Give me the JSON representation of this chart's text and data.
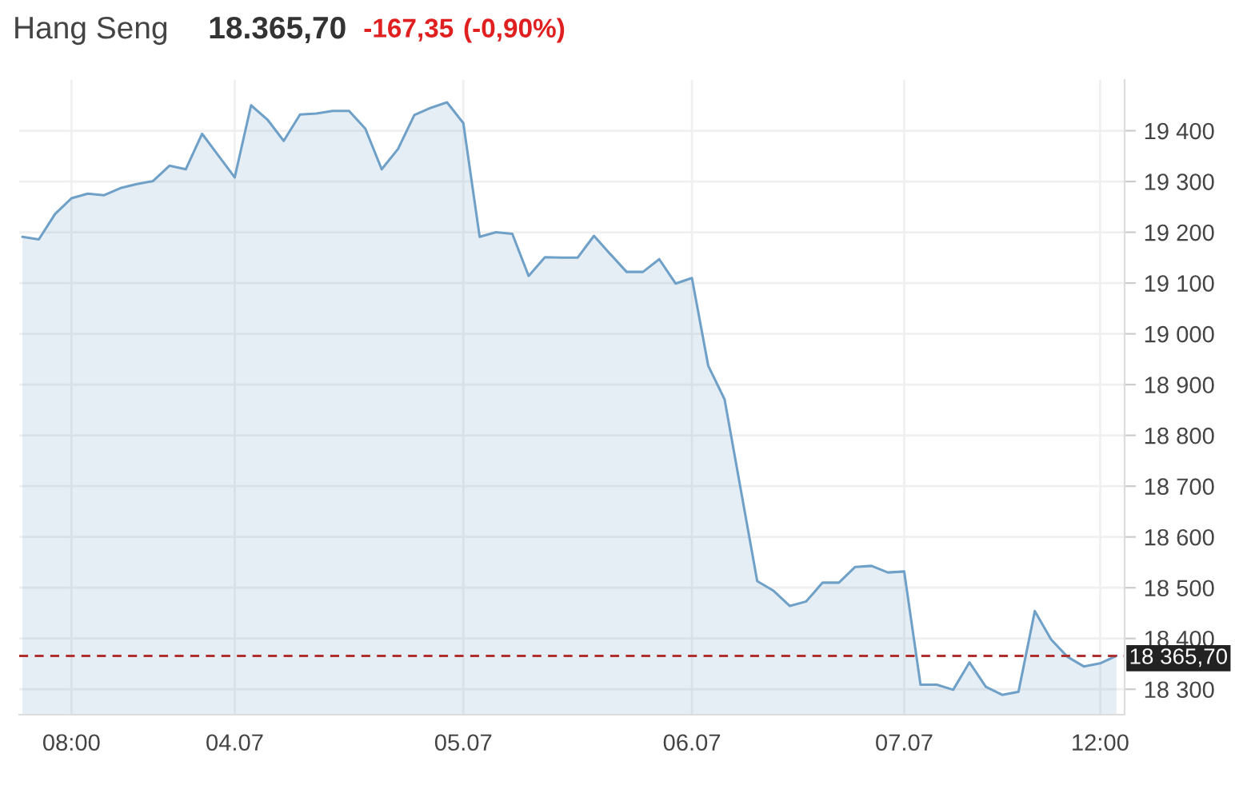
{
  "chart_data": {
    "type": "area",
    "title": "Hang Seng",
    "annotations": [
      "18.365,70",
      "-167,35",
      "(-0,90%)"
    ],
    "categories": [
      null,
      null,
      null,
      "08:00",
      null,
      null,
      null,
      null,
      null,
      null,
      null,
      null,
      null,
      "04.07",
      null,
      null,
      null,
      null,
      null,
      null,
      null,
      null,
      null,
      null,
      null,
      null,
      null,
      "05.07",
      null,
      null,
      null,
      null,
      null,
      null,
      null,
      null,
      null,
      null,
      null,
      null,
      null,
      "06.07",
      null,
      null,
      null,
      null,
      null,
      null,
      null,
      null,
      null,
      null,
      null,
      null,
      "07.07",
      null,
      null,
      null,
      null,
      null,
      null,
      null,
      null,
      null,
      null,
      null,
      "12:00",
      null
    ],
    "series": [
      {
        "color": "#6fa0c8",
        "values": [
          19191,
          19186,
          19236,
          19267,
          19276,
          19273,
          19287,
          19295,
          19301,
          19331,
          19324,
          19394,
          19351,
          19308,
          19450,
          19422,
          19380,
          19432,
          19434,
          19439,
          19439,
          19404,
          19324,
          19364,
          19431,
          19445,
          19456,
          19415,
          19191,
          19200,
          19197,
          19114,
          19151,
          19150,
          19150,
          19193,
          19157,
          19122,
          19122,
          19147,
          19099,
          19110,
          18937,
          18871,
          18692,
          18513,
          18494,
          18464,
          18473,
          18510,
          18510,
          18541,
          18543,
          18530,
          18532,
          18309,
          18309,
          18299,
          18353,
          18305,
          18289,
          18295,
          18454,
          18398,
          18364,
          18345,
          18351,
          18366
        ]
      }
    ],
    "ylim": [
      18250,
      19500
    ],
    "yticks": [
      {
        "value": 18300,
        "label": "18 300"
      },
      {
        "value": 18400,
        "label": "18 400"
      },
      {
        "value": 18500,
        "label": "18 500"
      },
      {
        "value": 18600,
        "label": "18 600"
      },
      {
        "value": 18700,
        "label": "18 700"
      },
      {
        "value": 18800,
        "label": "18 800"
      },
      {
        "value": 18900,
        "label": "18 900"
      },
      {
        "value": 19000,
        "label": "19 000"
      },
      {
        "value": 19100,
        "label": "19 100"
      },
      {
        "value": 19200,
        "label": "19 200"
      },
      {
        "value": 19300,
        "label": "19 300"
      },
      {
        "value": 19400,
        "label": "19 400"
      }
    ],
    "ref_lines": [
      {
        "axis": "y",
        "value": 18365.7,
        "label": "18 365,70",
        "color": "#b03030",
        "line_style": "dashed"
      }
    ],
    "grid": true
  }
}
